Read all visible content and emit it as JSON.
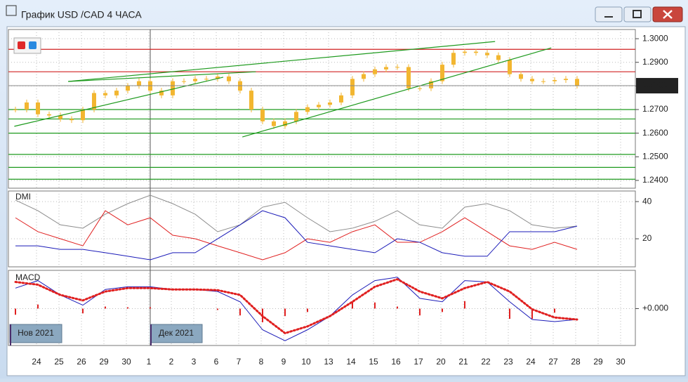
{
  "window": {
    "title": "График USD /CAD  4 ЧАСА"
  },
  "price": {
    "ylim": [
      1.2367,
      1.3039
    ],
    "yticks": [
      {
        "value": 1.3,
        "label": "1.3000"
      },
      {
        "value": 1.29,
        "label": "1.2900"
      },
      {
        "value": 1.28,
        "label": "1.2800"
      },
      {
        "value": 1.27,
        "label": "1.2700"
      },
      {
        "value": 1.26,
        "label": "1.2600"
      },
      {
        "value": 1.25,
        "label": "1.2500"
      },
      {
        "value": 1.24,
        "label": "1.2400"
      }
    ],
    "candle_color": "#f2b630",
    "resistance_color": "#d02020",
    "resistance": [
      1.2955,
      1.286
    ],
    "support_color": "#1e9a1e",
    "support": [
      1.27,
      1.266,
      1.26,
      1.251,
      1.2455,
      1.2405
    ],
    "last_price": 1.2801,
    "closes": [
      1.27,
      1.273,
      1.268,
      1.2675,
      1.266,
      1.2655,
      1.27,
      1.277,
      1.276,
      1.278,
      1.28,
      1.282,
      1.278,
      1.276,
      1.282,
      1.282,
      1.283,
      1.283,
      1.284,
      1.282,
      1.278,
      1.27,
      1.265,
      1.263,
      1.265,
      1.269,
      1.271,
      1.272,
      1.273,
      1.276,
      1.283,
      1.285,
      1.287,
      1.288,
      1.288,
      1.279,
      1.279,
      1.282,
      1.289,
      1.294,
      1.2945,
      1.294,
      1.293,
      1.291,
      1.285,
      1.283,
      1.282,
      1.282,
      1.2825,
      1.283,
      1.2801
    ],
    "trend_color": "#1e9a1e",
    "trendlines": [
      [
        [
          -0.1,
          1.2629
        ],
        [
          18.5,
          1.2837
        ]
      ],
      [
        [
          4.7,
          1.2819
        ],
        [
          21.4,
          1.286
        ]
      ],
      [
        [
          4.7,
          1.2819
        ],
        [
          42.7,
          1.2988
        ]
      ],
      [
        [
          20.2,
          1.2584
        ],
        [
          47.7,
          1.2961
        ]
      ]
    ]
  },
  "dmi": {
    "label": "DMI",
    "ylim": [
      4.9,
      45.7
    ],
    "yticks": [
      20,
      40
    ],
    "series": [
      {
        "color": "#8c8c8c",
        "values": [
          40.8,
          35.1,
          27.5,
          25.7,
          33.2,
          38.9,
          43.4,
          38.9,
          33.2,
          23.8,
          27.5,
          37,
          39.6,
          31.3,
          23.8,
          25.7,
          29.4,
          35.1,
          27.5,
          25.7,
          37,
          38.9,
          35.1,
          27.5,
          25.7,
          26.8
        ]
      },
      {
        "color": "#e02020",
        "values": [
          31.3,
          23.8,
          20,
          16.2,
          35.1,
          27.5,
          31.3,
          21.9,
          20,
          16.2,
          12.5,
          8.7,
          12.5,
          20,
          18.1,
          23.8,
          27.5,
          18.1,
          18.1,
          23.8,
          31.3,
          23.8,
          16.2,
          14.3,
          18.1,
          14.3
        ]
      },
      {
        "color": "#1a1ab8",
        "values": [
          16.2,
          16.2,
          14.3,
          14.3,
          12.5,
          10.6,
          8.7,
          12.5,
          12.5,
          20,
          27.5,
          35.1,
          31.3,
          18.1,
          16.2,
          14.3,
          12.5,
          20,
          18.1,
          12.5,
          10.6,
          10.6,
          23.8,
          23.8,
          23.8,
          26.8
        ]
      }
    ]
  },
  "macd": {
    "label": "MACD",
    "ylim": [
      -0.0054,
      0.0056
    ],
    "yticks": [
      {
        "value": 0,
        "label": "+0.000"
      }
    ],
    "macd_color": "#1a1ab8",
    "macd": [
      0.003,
      0.0041,
      0.002,
      0.0005,
      0.0028,
      0.0032,
      0.0032,
      0.0028,
      0.0028,
      0.0025,
      0.001,
      -0.0031,
      -0.0047,
      -0.0031,
      -0.0011,
      0.002,
      0.0041,
      0.0046,
      0.0015,
      0.001,
      0.0041,
      0.0039,
      0.001,
      -0.0016,
      -0.0019,
      -0.0016
    ],
    "signal_color": "#e02020",
    "signal": [
      0.0039,
      0.0035,
      0.002,
      0.0012,
      0.0025,
      0.003,
      0.003,
      0.0028,
      0.0028,
      0.0027,
      0.002,
      -0.0011,
      -0.0036,
      -0.0026,
      -0.0011,
      0.001,
      0.0032,
      0.0043,
      0.0025,
      0.0015,
      0.003,
      0.0039,
      0.0025,
      -0.0001,
      -0.0013,
      -0.0016
    ],
    "hist_color": "#e02020",
    "hist": [
      -0.0009,
      0.0006,
      0,
      -0.0007,
      0.0003,
      0.0002,
      0.0002,
      0,
      0,
      -0.0002,
      -0.001,
      -0.002,
      -0.0011,
      -0.0005,
      0,
      0.001,
      0.0009,
      0.0003,
      -0.001,
      -0.0005,
      0.0011,
      0,
      -0.0015,
      -0.0015,
      -0.0006,
      0
    ]
  },
  "dates": {
    "days": [
      "24",
      "25",
      "26",
      "29",
      "30",
      "1",
      "2",
      "3",
      "6",
      "7",
      "8",
      "9",
      "10",
      "13",
      "14",
      "15",
      "16",
      "17",
      "20",
      "21",
      "22",
      "23",
      "24",
      "27",
      "28",
      "29",
      "30"
    ],
    "months": [
      "Нов 2021",
      "Дек 2021"
    ]
  }
}
